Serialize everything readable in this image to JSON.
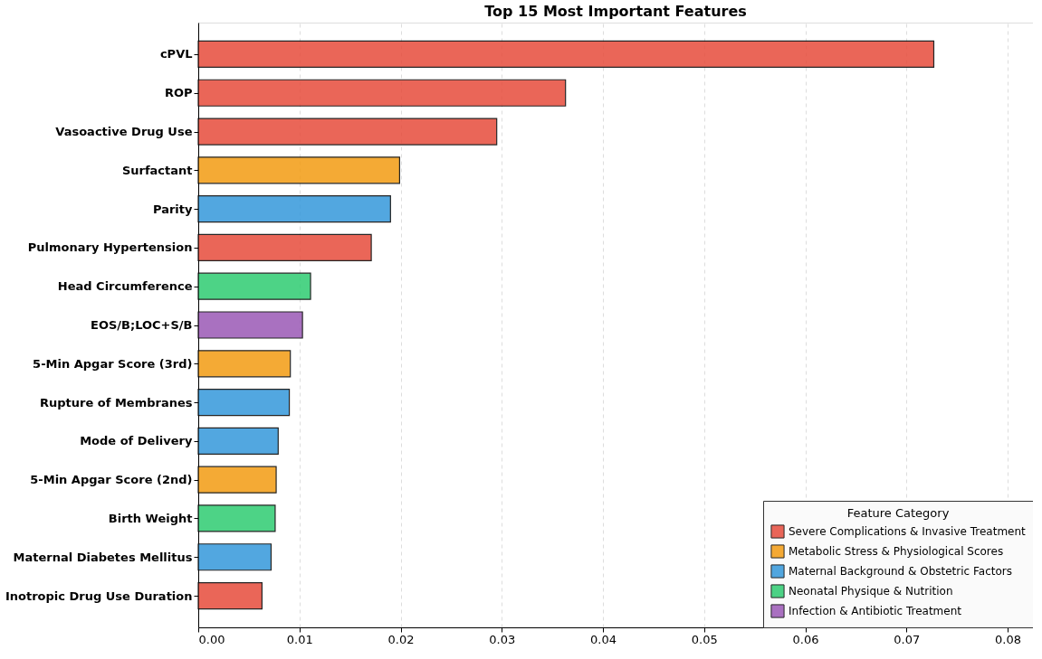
{
  "chart_data": {
    "type": "bar",
    "orientation": "horizontal",
    "title": "Top 15 Most Important Features",
    "categories": [
      "cPVL",
      "ROP",
      "Vasoactive Drug Use",
      "Surfactant",
      "Parity",
      "Pulmonary Hypertension",
      "Head Circumference",
      "EOS/B;LOC+S/B",
      "5-Min Apgar Score (3rd)",
      "Rupture of Membranes",
      "Mode of Delivery",
      "5-Min Apgar Score (2nd)",
      "Birth Weight",
      "Maternal Diabetes Mellitus",
      "Inotropic Drug Use Duration"
    ],
    "series": [
      {
        "name": "Severe Complications & Invasive Treatment",
        "color": "#e74c3c",
        "values": [
          0.0727,
          0.0363,
          0.0295,
          null,
          null,
          0.0171,
          null,
          null,
          null,
          null,
          null,
          null,
          null,
          null,
          0.0063
        ]
      },
      {
        "name": "Metabolic Stress & Physiological Scores",
        "color": "#f39c12",
        "values": [
          null,
          null,
          null,
          0.0199,
          null,
          null,
          null,
          null,
          0.0091,
          null,
          null,
          0.0077,
          null,
          null,
          null
        ]
      },
      {
        "name": "Maternal Background & Obstetric Factors",
        "color": "#3498db",
        "values": [
          null,
          null,
          null,
          null,
          0.019,
          null,
          null,
          null,
          null,
          0.009,
          0.0079,
          null,
          null,
          0.0072,
          null
        ]
      },
      {
        "name": "Neonatal Physique & Nutrition",
        "color": "#2ecc71",
        "values": [
          null,
          null,
          null,
          null,
          null,
          null,
          0.0111,
          null,
          null,
          null,
          null,
          null,
          0.0076,
          null,
          null
        ]
      },
      {
        "name": "Infection & Antibiotic Treatment",
        "color": "#9b59b6",
        "values": [
          null,
          null,
          null,
          null,
          null,
          null,
          null,
          0.0103,
          null,
          null,
          null,
          null,
          null,
          null,
          null
        ]
      }
    ],
    "legend_title": "Feature Category",
    "legend": "bottom right",
    "xlim": [
      0,
      0.0825
    ],
    "xticks": [
      {
        "value": 0,
        "label": "0.00"
      },
      0.01,
      0.02,
      0.03,
      0.04,
      0.05,
      0.06,
      0.07,
      0.08
    ],
    "grid": "x"
  }
}
